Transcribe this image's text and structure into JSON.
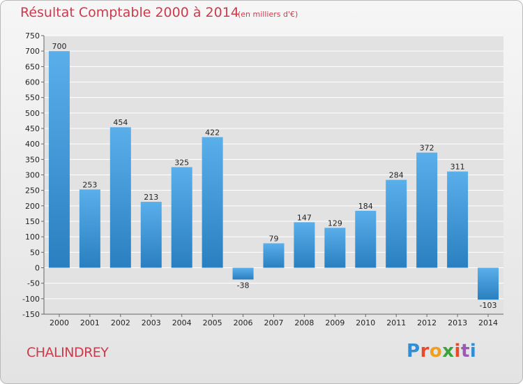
{
  "chart_data": {
    "type": "bar",
    "title": "Résultat Comptable 2000 à 2014",
    "subtitle": "(en milliers d'€)",
    "xlabel": "",
    "ylabel": "",
    "categories": [
      "2000",
      "2001",
      "2002",
      "2003",
      "2004",
      "2005",
      "2006",
      "2007",
      "2008",
      "2009",
      "2010",
      "2011",
      "2012",
      "2013",
      "2014"
    ],
    "values": [
      700,
      253,
      454,
      213,
      325,
      422,
      -38,
      79,
      147,
      129,
      184,
      284,
      372,
      311,
      -103
    ],
    "value_labels": [
      "700",
      "253",
      "454",
      "213",
      "325",
      "422",
      "-38",
      "79",
      "147",
      "129",
      "184",
      "284",
      "372",
      "311",
      "-103"
    ],
    "ylim": [
      -150,
      750
    ],
    "yticks": [
      -150,
      -100,
      -50,
      0,
      50,
      100,
      150,
      200,
      250,
      300,
      350,
      400,
      450,
      500,
      550,
      600,
      650,
      700,
      750
    ],
    "ytick_labels": [
      "-150",
      "-100",
      "-50",
      "0",
      "50",
      "100",
      "150",
      "200",
      "250",
      "300",
      "350",
      "400",
      "450",
      "500",
      "550",
      "600",
      "650",
      "700",
      "750"
    ],
    "grid": true,
    "legend": "none",
    "colors": {
      "bar_top": "#5aaeea",
      "bar_bottom": "#2a7fc0",
      "grid": "#ffffff",
      "title": "#cc3b4c"
    }
  },
  "footer": {
    "commune": "CHALINDREY",
    "brand_letters": [
      "P",
      "r",
      "o",
      "x",
      "i",
      "t",
      "i"
    ],
    "brand_colors": [
      "#2f8fd6",
      "#e94a2a",
      "#f0a020",
      "#3aa33a",
      "#e94a2a",
      "#9b59b6",
      "#2f8fd6"
    ]
  }
}
